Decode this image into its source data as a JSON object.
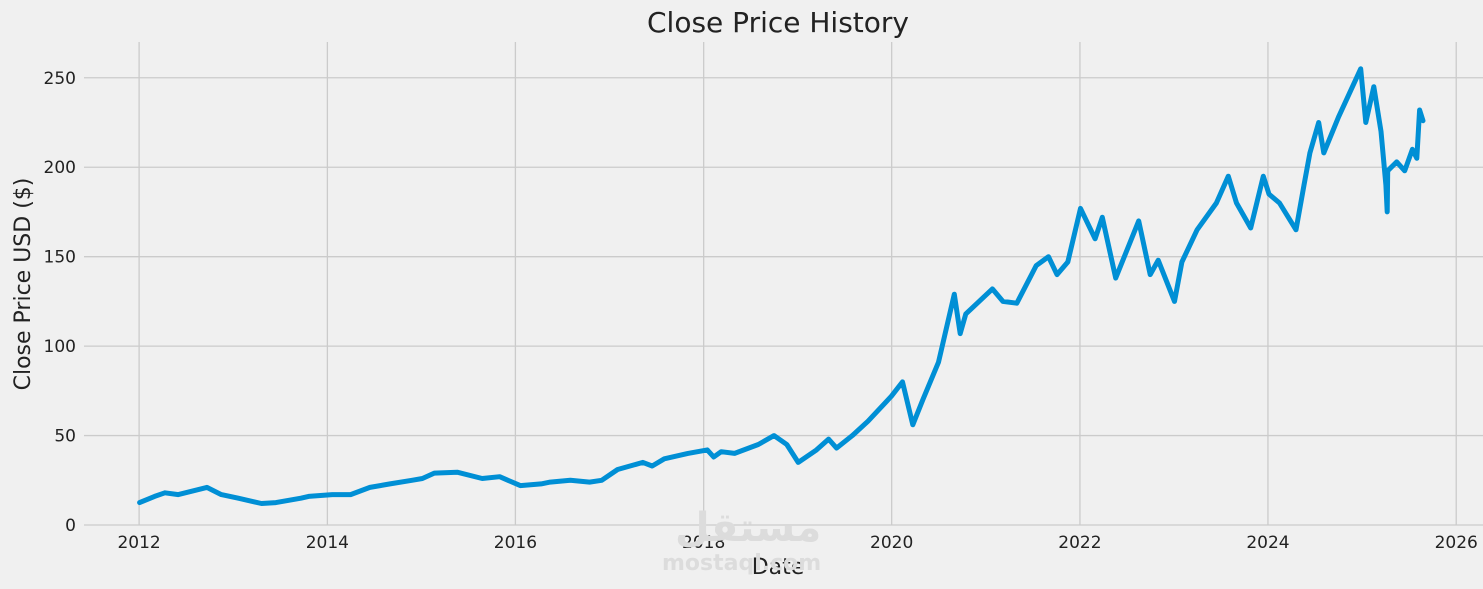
{
  "chart_data": {
    "type": "line",
    "title": "Close Price History",
    "xlabel": "Date",
    "ylabel": "Close Price USD ($)",
    "xlim": [
      "2011-06-01",
      "2026-04-15"
    ],
    "ylim": [
      0,
      270
    ],
    "x_ticks": [
      "2012",
      "2014",
      "2016",
      "2018",
      "2020",
      "2022",
      "2024",
      "2026"
    ],
    "y_ticks": [
      0,
      50,
      100,
      150,
      200,
      250
    ],
    "grid": true,
    "line_color": "#008fd5",
    "series": [
      {
        "x": [
          "2012-01-03",
          "2012-03-01",
          "2012-04-10",
          "2012-06-01",
          "2012-09-20",
          "2012-11-15",
          "2013-01-20",
          "2013-04-20",
          "2013-06-15",
          "2013-09-20",
          "2013-10-20",
          "2014-01-20",
          "2014-04-01",
          "2014-06-15",
          "2014-09-01",
          "2014-11-25",
          "2015-01-05",
          "2015-02-20",
          "2015-05-20",
          "2015-08-25",
          "2015-11-01",
          "2016-01-20",
          "2016-04-10",
          "2016-05-15",
          "2016-08-01",
          "2016-10-15",
          "2016-12-01",
          "2017-02-01",
          "2017-05-10",
          "2017-06-15",
          "2017-08-01",
          "2017-11-01",
          "2018-01-15",
          "2018-02-09",
          "2018-03-10",
          "2018-05-01",
          "2018-08-01",
          "2018-10-01",
          "2018-11-20",
          "2019-01-03",
          "2019-03-15",
          "2019-05-01",
          "2019-06-01",
          "2019-08-01",
          "2019-10-01",
          "2019-12-31",
          "2020-02-12",
          "2020-03-23",
          "2020-05-01",
          "2020-07-01",
          "2020-08-31",
          "2020-09-23",
          "2020-10-15",
          "2021-01-26",
          "2021-03-08",
          "2021-05-01",
          "2021-07-15",
          "2021-09-01",
          "2021-10-04",
          "2021-11-15",
          "2022-01-03",
          "2022-03-01",
          "2022-03-29",
          "2022-05-20",
          "2022-08-17",
          "2022-10-01",
          "2022-11-01",
          "2023-01-03",
          "2023-02-01",
          "2023-04-01",
          "2023-06-15",
          "2023-07-31",
          "2023-09-01",
          "2023-10-26",
          "2023-12-14",
          "2024-01-05",
          "2024-02-15",
          "2024-04-19",
          "2024-05-20",
          "2024-06-12",
          "2024-07-16",
          "2024-08-05",
          "2024-10-01",
          "2024-12-26",
          "2025-01-15",
          "2025-02-15",
          "2025-03-15",
          "2025-04-03",
          "2025-04-08",
          "2025-04-10",
          "2025-05-15",
          "2025-06-15",
          "2025-07-15",
          "2025-08-01",
          "2025-08-12",
          "2025-08-25"
        ],
        "values": [
          12.5,
          16,
          18,
          17,
          21,
          17,
          15,
          12,
          12.5,
          15,
          16,
          17,
          17,
          21,
          23,
          25,
          26,
          29,
          29.5,
          26,
          27,
          22,
          23,
          24,
          25,
          24,
          25,
          31,
          35,
          33,
          37,
          40,
          42,
          38,
          41,
          40,
          45,
          50,
          45,
          35,
          42,
          48,
          43,
          50,
          58,
          72,
          80,
          56,
          70,
          91,
          129,
          107,
          118,
          132,
          125,
          124,
          145,
          150,
          140,
          147,
          177,
          160,
          172,
          138,
          170,
          140,
          148,
          125,
          147,
          165,
          180,
          195,
          180,
          166,
          195,
          185,
          180,
          165,
          190,
          208,
          225,
          208,
          228,
          255,
          225,
          245,
          220,
          190,
          175,
          198,
          203,
          198,
          210,
          205,
          232,
          226
        ]
      }
    ]
  },
  "watermark": {
    "arabic": "مستقل",
    "latin": "mostaql.com"
  }
}
